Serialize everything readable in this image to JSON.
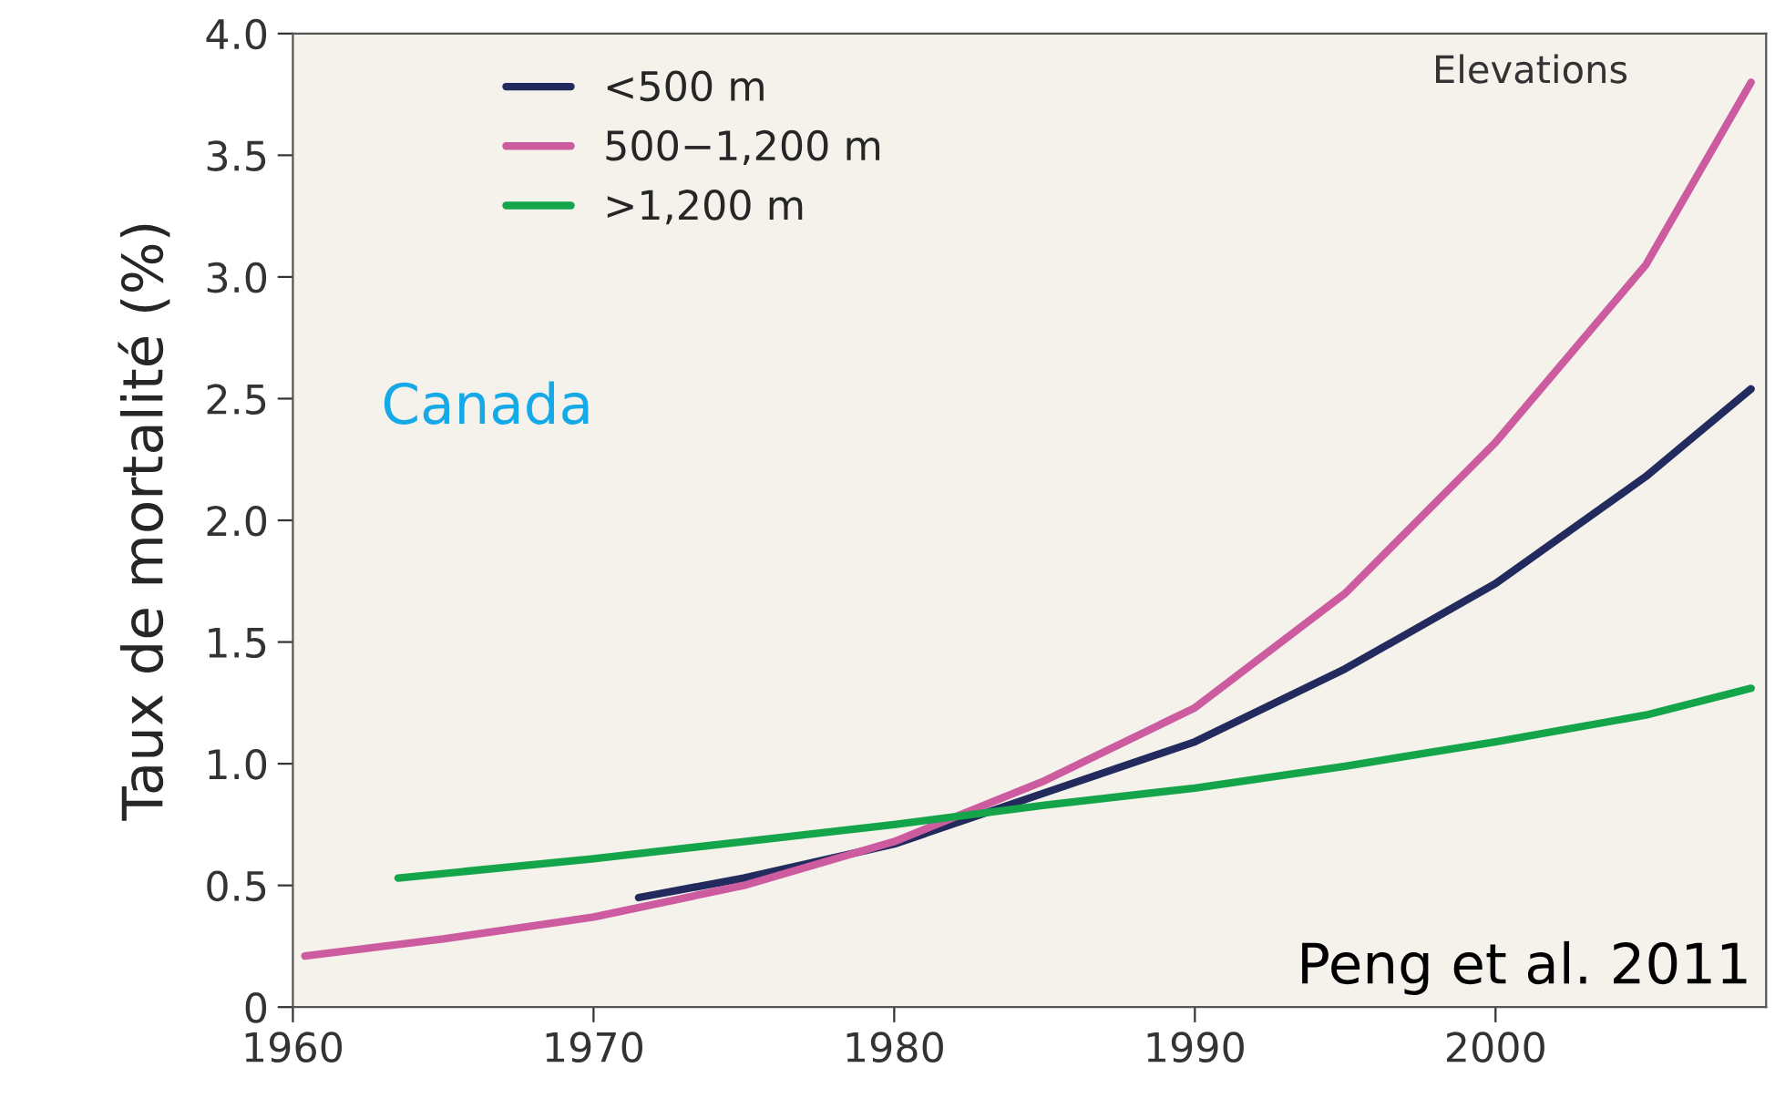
{
  "chart_data": {
    "type": "line",
    "ylabel": "Taux de mortalité (%)",
    "legend_title": "Elevations",
    "annotations": [
      "Canada",
      "Peng et al. 2011"
    ],
    "series": [
      {
        "name": "<500 m",
        "color": "#232a5e",
        "x": [
          1971.5,
          1975,
          1980,
          1985,
          1990,
          1995,
          2000,
          2005,
          2008.5
        ],
        "values": [
          0.45,
          0.53,
          0.67,
          0.88,
          1.09,
          1.39,
          1.74,
          2.18,
          2.54
        ]
      },
      {
        "name": "500−1,200 m",
        "color": "#cc5b9f",
        "x": [
          1960.4,
          1965,
          1970,
          1975,
          1980,
          1985,
          1990,
          1995,
          2000,
          2005,
          2008.5
        ],
        "values": [
          0.21,
          0.28,
          0.37,
          0.5,
          0.68,
          0.93,
          1.23,
          1.7,
          2.32,
          3.05,
          3.8
        ]
      },
      {
        "name": ">1,200 m",
        "color": "#14a44a",
        "x": [
          1963.5,
          1970,
          1975,
          1980,
          1985,
          1990,
          1995,
          2000,
          2005,
          2008.5
        ],
        "values": [
          0.53,
          0.61,
          0.68,
          0.75,
          0.83,
          0.9,
          0.99,
          1.09,
          1.2,
          1.31
        ]
      }
    ],
    "xlim": [
      1960,
      2009
    ],
    "xticks": [
      1960,
      1970,
      1980,
      1990,
      2000
    ],
    "ylim": [
      0,
      4
    ],
    "yticks": [
      0,
      0.5,
      {
        "value": 1,
        "label": "1.0"
      },
      1.5,
      {
        "value": 2,
        "label": "2.0"
      },
      2.5,
      {
        "value": 3,
        "label": "3.0"
      },
      3.5,
      {
        "value": 4,
        "label": "4.0"
      }
    ],
    "grid": false,
    "legend": "top left",
    "line_style": "solid",
    "marker": "none"
  }
}
